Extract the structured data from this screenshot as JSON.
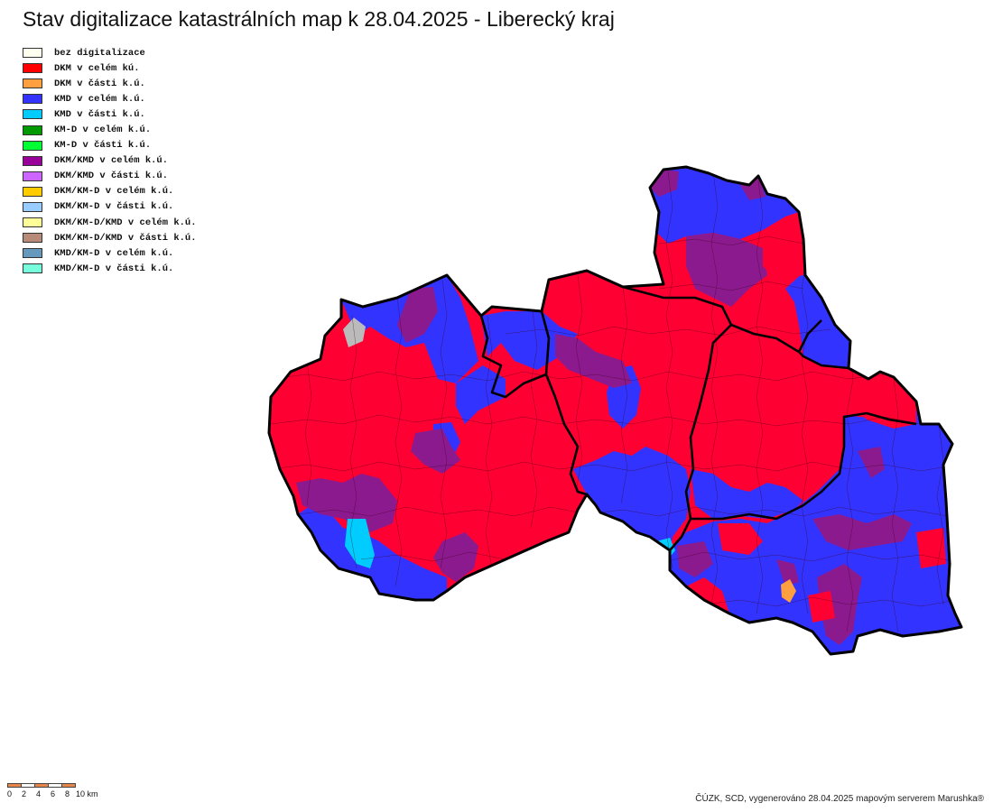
{
  "map": {
    "title": "Stav digitalizace katastrálních map k 28.04.2025 - Liberecký kraj",
    "credit": "ČÚZK, SCD, vygenerováno 28.04.2025 mapovým serverem Marushka®",
    "legend": [
      {
        "label": "bez digitalizace",
        "color": "#fffff0"
      },
      {
        "label": "DKM v celém kú.",
        "color": "#ff0000"
      },
      {
        "label": "DKM v části k.ú.",
        "color": "#ff9f40"
      },
      {
        "label": "KMD v celém k.ú.",
        "color": "#3333ff"
      },
      {
        "label": "KMD v části k.ú.",
        "color": "#00ccff"
      },
      {
        "label": "KM-D v celém k.ú.",
        "color": "#009900"
      },
      {
        "label": "KM-D v části k.ú.",
        "color": "#00ff33"
      },
      {
        "label": "DKM/KMD v celém k.ú.",
        "color": "#990099"
      },
      {
        "label": "DKM/KMD v části k.ú.",
        "color": "#cc66ff"
      },
      {
        "label": "DKM/KM-D v celém k.ú.",
        "color": "#ffcc00"
      },
      {
        "label": "DKM/KM-D v části k.ú.",
        "color": "#99ccff"
      },
      {
        "label": "DKM/KM-D/KMD v celém k.ú.",
        "color": "#ffff99"
      },
      {
        "label": "DKM/KM-D/KMD v části k.ú.",
        "color": "#b88a78"
      },
      {
        "label": "KMD/KM-D v celém k.ú.",
        "color": "#6699bb"
      },
      {
        "label": "KMD/KM-D v části k.ú.",
        "color": "#77ffdd"
      }
    ],
    "scale_bar": {
      "labels": [
        "0",
        "2",
        "4",
        "6",
        "8",
        "10 km"
      ],
      "segment_colors": [
        "#e8864a",
        "#ffffff",
        "#e8864a",
        "#ffffff",
        "#e8864a"
      ]
    },
    "colors": {
      "dkm": "#ff0033",
      "kmd": "#3333ff",
      "dkm_kmd": "#8b1a8f",
      "kmd_part": "#00ccff",
      "dkm_part": "#ff9f40",
      "no_data": "#bbbbbb",
      "border": "#000000"
    }
  }
}
